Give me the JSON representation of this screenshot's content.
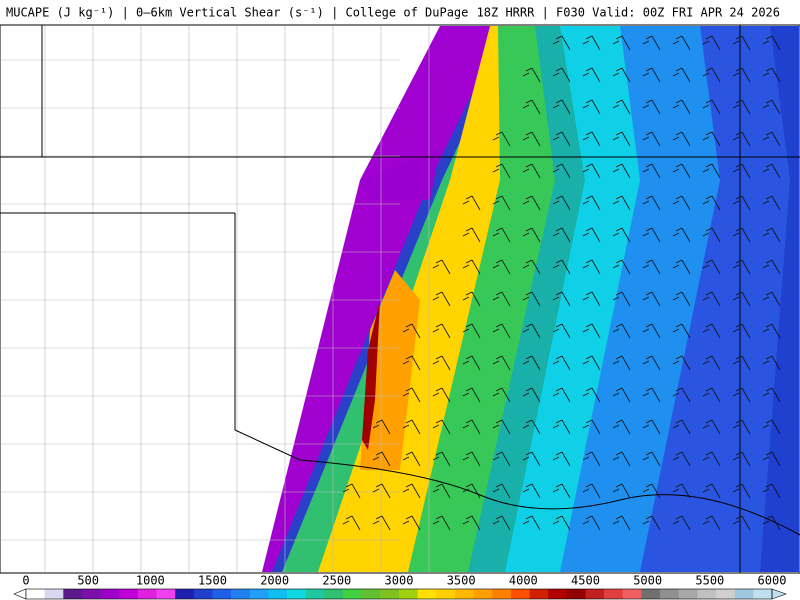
{
  "header": {
    "left": "MUCAPE (J kg⁻¹) | 0–6km Vertical Shear (s⁻¹) | College of DuPage",
    "right": "18Z HRRR | F030 Valid: 00Z FRI APR 24 2026"
  },
  "colorbar": {
    "ticks": [
      "0",
      "500",
      "1000",
      "1500",
      "2000",
      "2500",
      "3000",
      "3500",
      "4000",
      "4500",
      "5000",
      "5500",
      "6000"
    ]
  }
}
